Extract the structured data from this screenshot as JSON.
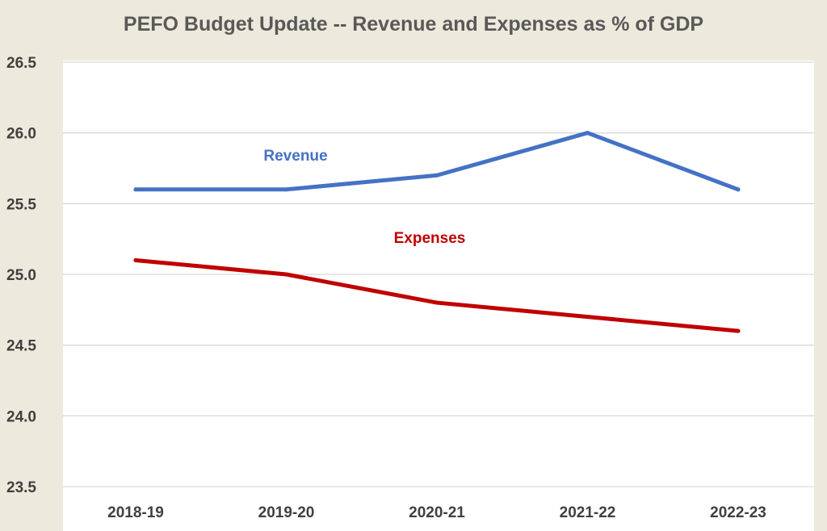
{
  "chart_data": {
    "type": "line",
    "title": "PEFO Budget Update -- Revenue and Expenses as % of GDP",
    "xlabel": "",
    "ylabel": "",
    "categories": [
      "2018-19",
      "2019-20",
      "2020-21",
      "2021-22",
      "2022-23"
    ],
    "ylim": [
      23.5,
      26.5
    ],
    "yticks": [
      "23.5",
      "24.0",
      "24.5",
      "25.0",
      "25.5",
      "26.0",
      "26.5"
    ],
    "grid": true,
    "series": [
      {
        "name": "Revenue",
        "color": "#4472c4",
        "values": [
          25.6,
          25.6,
          25.7,
          26.0,
          25.6
        ]
      },
      {
        "name": "Expenses",
        "color": "#c00000",
        "values": [
          25.1,
          25.0,
          24.8,
          24.7,
          24.6
        ]
      }
    ]
  }
}
